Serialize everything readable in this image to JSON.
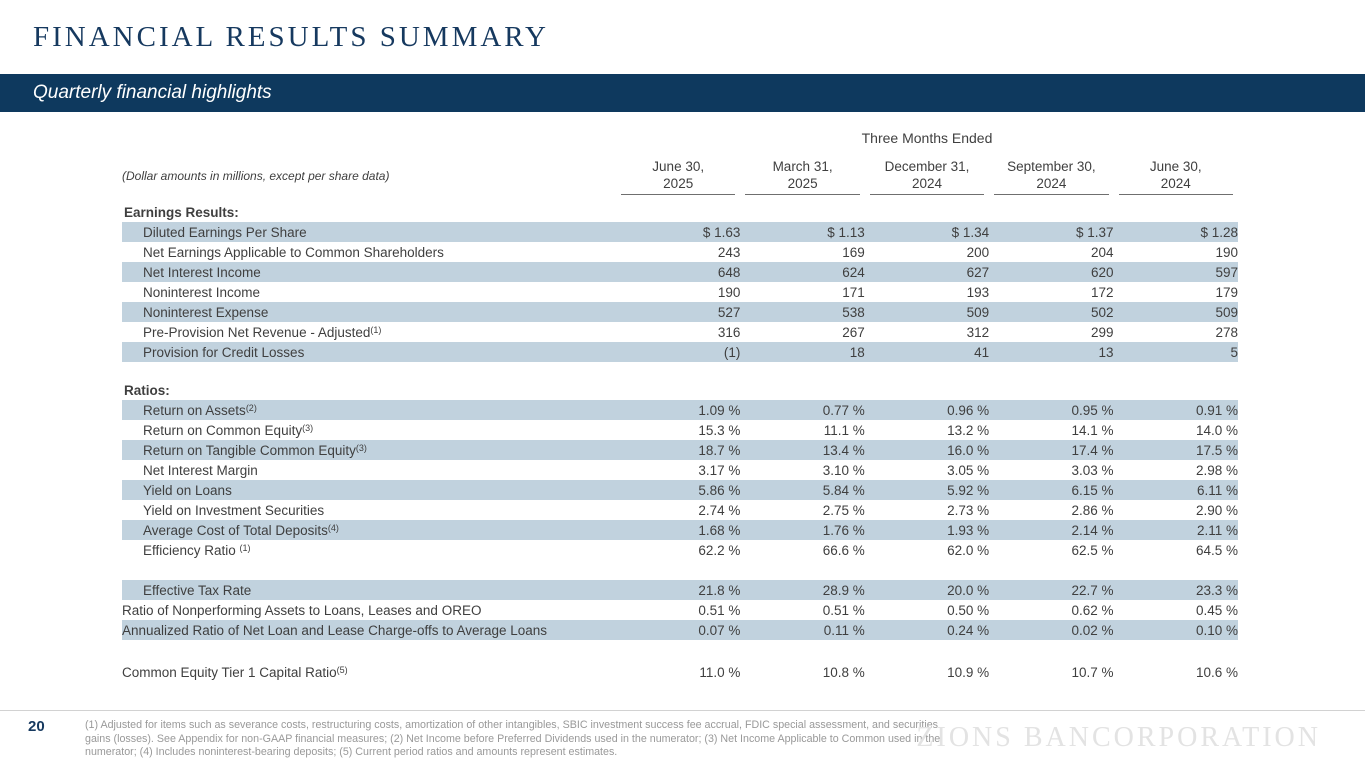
{
  "slide": {
    "title": "FINANCIAL RESULTS SUMMARY",
    "subtitle": "Quarterly financial highlights",
    "page_number": "20"
  },
  "colors": {
    "navy_band": "#0e395e",
    "title_navy": "#16395f",
    "row_shade": "#c1d2de",
    "body_text": "#3f3f3f",
    "footnote_gray": "#999999",
    "watermark_gray": "#e3e3e3"
  },
  "table": {
    "note": "(Dollar amounts in millions, except per share data)",
    "span_header": "Three Months Ended",
    "columns": [
      {
        "line1": "June 30,",
        "line2": "2025"
      },
      {
        "line1": "March 31,",
        "line2": "2025"
      },
      {
        "line1": "December 31,",
        "line2": "2024"
      },
      {
        "line1": "September 30,",
        "line2": "2024"
      },
      {
        "line1": "June 30,",
        "line2": "2024"
      }
    ],
    "sections": [
      {
        "header": "Earnings Results:",
        "pre_gap": false,
        "rows": [
          {
            "label": "Diluted Earnings Per Share",
            "sup": "",
            "indent": true,
            "shaded": true,
            "values": [
              "$ 1.63",
              "$ 1.13",
              "$ 1.34",
              "$ 1.37",
              "$ 1.28"
            ]
          },
          {
            "label": "Net Earnings Applicable to Common Shareholders",
            "sup": "",
            "indent": true,
            "shaded": false,
            "values": [
              "243",
              "169",
              "200",
              "204",
              "190"
            ]
          },
          {
            "label": "Net Interest Income",
            "sup": "",
            "indent": true,
            "shaded": true,
            "values": [
              "648",
              "624",
              "627",
              "620",
              "597"
            ]
          },
          {
            "label": "Noninterest Income",
            "sup": "",
            "indent": true,
            "shaded": false,
            "values": [
              "190",
              "171",
              "193",
              "172",
              "179"
            ]
          },
          {
            "label": "Noninterest Expense",
            "sup": "",
            "indent": true,
            "shaded": true,
            "values": [
              "527",
              "538",
              "509",
              "502",
              "509"
            ]
          },
          {
            "label": "Pre-Provision Net Revenue - Adjusted",
            "sup": "(1)",
            "indent": true,
            "shaded": false,
            "values": [
              "316",
              "267",
              "312",
              "299",
              "278"
            ]
          },
          {
            "label": "Provision for Credit Losses",
            "sup": "",
            "indent": true,
            "shaded": true,
            "values": [
              "(1)",
              "18",
              "41",
              "13",
              "5"
            ]
          }
        ]
      },
      {
        "header": "Ratios:",
        "pre_gap": true,
        "rows": [
          {
            "label": "Return on Assets",
            "sup": "(2)",
            "indent": true,
            "shaded": true,
            "values": [
              "1.09 %",
              "0.77 %",
              "0.96 %",
              "0.95 %",
              "0.91 %"
            ]
          },
          {
            "label": "Return on Common Equity",
            "sup": "(3)",
            "indent": true,
            "shaded": false,
            "values": [
              "15.3 %",
              "11.1 %",
              "13.2 %",
              "14.1 %",
              "14.0 %"
            ]
          },
          {
            "label": "Return on Tangible Common Equity",
            "sup": "(3)",
            "indent": true,
            "shaded": true,
            "values": [
              "18.7 %",
              "13.4 %",
              "16.0 %",
              "17.4 %",
              "17.5 %"
            ]
          },
          {
            "label": "Net Interest Margin",
            "sup": "",
            "indent": true,
            "shaded": false,
            "values": [
              "3.17 %",
              "3.10 %",
              "3.05 %",
              "3.03 %",
              "2.98 %"
            ]
          },
          {
            "label": "Yield on Loans",
            "sup": "",
            "indent": true,
            "shaded": true,
            "values": [
              "5.86 %",
              "5.84 %",
              "5.92 %",
              "6.15 %",
              "6.11 %"
            ]
          },
          {
            "label": "Yield on Investment Securities",
            "sup": "",
            "indent": true,
            "shaded": false,
            "values": [
              "2.74 %",
              "2.75 %",
              "2.73 %",
              "2.86 %",
              "2.90 %"
            ]
          },
          {
            "label": "Average Cost of Total Deposits",
            "sup": "(4)",
            "indent": true,
            "shaded": true,
            "values": [
              "1.68 %",
              "1.76 %",
              "1.93 %",
              "2.14 %",
              "2.11 %"
            ]
          },
          {
            "label": "Efficiency Ratio ",
            "sup": "(1)",
            "indent": true,
            "shaded": false,
            "values": [
              "62.2 %",
              "66.6 %",
              "62.0 %",
              "62.5 %",
              "64.5 %"
            ]
          },
          {
            "spacer": true,
            "height": 20
          },
          {
            "label": "Effective Tax Rate",
            "sup": "",
            "indent": true,
            "shaded": true,
            "values": [
              "21.8 %",
              "28.9 %",
              "20.0 %",
              "22.7 %",
              "23.3 %"
            ]
          },
          {
            "label": "Ratio of Nonperforming Assets to Loans, Leases and OREO",
            "sup": "",
            "indent": false,
            "shaded": false,
            "values": [
              "0.51 %",
              "0.51 %",
              "0.50 %",
              "0.62 %",
              "0.45 %"
            ]
          },
          {
            "label": "Annualized Ratio of Net Loan and Lease Charge-offs to Average Loans",
            "sup": "",
            "indent": false,
            "shaded": true,
            "values": [
              "0.07 %",
              "0.11 %",
              "0.24 %",
              "0.02 %",
              "0.10 %"
            ]
          },
          {
            "spacer": true,
            "height": 22
          },
          {
            "label": "Common Equity Tier 1 Capital Ratio",
            "sup": "(5)",
            "indent": false,
            "shaded": false,
            "values": [
              "11.0 %",
              "10.8 %",
              "10.9 %",
              "10.7 %",
              "10.6 %"
            ]
          }
        ]
      }
    ]
  },
  "footer": {
    "footnote": "(1) Adjusted for items such as severance costs, restructuring costs, amortization of other intangibles, SBIC investment success fee accrual, FDIC special assessment, and securities gains (losses). See Appendix for non-GAAP financial measures; (2) Net Income before Preferred Dividends used in the numerator; (3) Net Income Applicable to Common used in the numerator; (4) Includes noninterest-bearing deposits; (5) Current period ratios and amounts represent estimates.",
    "watermark": "ZIONS BANCORPORATION"
  }
}
